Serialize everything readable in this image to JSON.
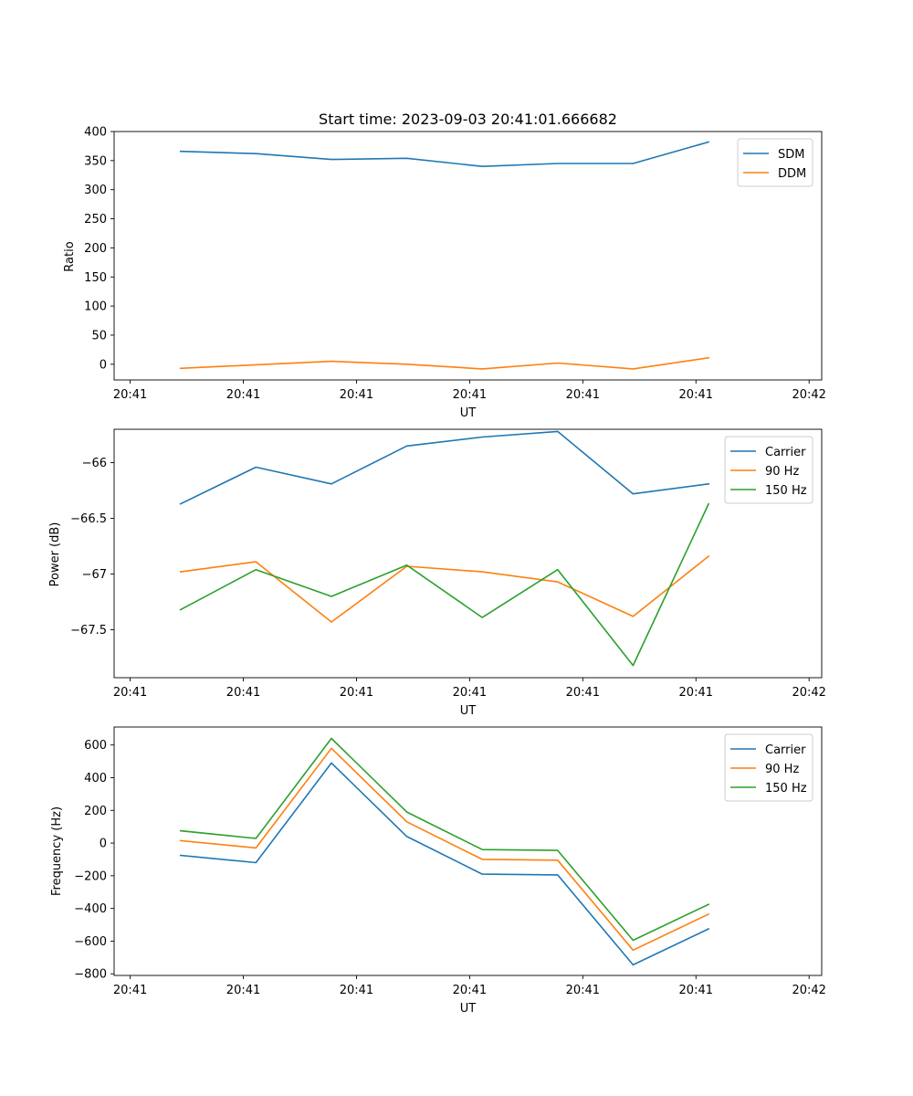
{
  "chart_data": [
    {
      "type": "line",
      "title": "Start time: 2023-09-03 20:41:01.666682",
      "xlabel": "UT",
      "ylabel": "Ratio",
      "xlim": [
        0.12,
        9.5
      ],
      "ylim": [
        -27,
        400
      ],
      "yticks": [
        0,
        50,
        100,
        150,
        200,
        250,
        300,
        350,
        400
      ],
      "xticks": [
        {
          "pos": 0.333,
          "label": "20:41"
        },
        {
          "pos": 1.833,
          "label": "20:41"
        },
        {
          "pos": 3.333,
          "label": "20:41"
        },
        {
          "pos": 4.833,
          "label": "20:41"
        },
        {
          "pos": 6.333,
          "label": "20:41"
        },
        {
          "pos": 7.833,
          "label": "20:41"
        },
        {
          "pos": 9.333,
          "label": "20:42"
        }
      ],
      "x": [
        1.0,
        2.0,
        3.0,
        4.0,
        5.0,
        6.0,
        7.0,
        8.0
      ],
      "legend_position": "top-right",
      "series": [
        {
          "name": "SDM",
          "color": "#1f77b4",
          "values": [
            366,
            362,
            352,
            354,
            340,
            345,
            345,
            382
          ]
        },
        {
          "name": "DDM",
          "color": "#ff7f0e",
          "values": [
            -7,
            -1,
            5,
            0,
            -8,
            2,
            -8,
            11
          ]
        }
      ]
    },
    {
      "type": "line",
      "title": "",
      "xlabel": "UT",
      "ylabel": "Power (dB)",
      "xlim": [
        0.12,
        9.5
      ],
      "ylim": [
        -67.93,
        -65.7
      ],
      "yticks": [
        -67.5,
        -67.0,
        -66.5,
        -66.0
      ],
      "xticks": [
        {
          "pos": 0.333,
          "label": "20:41"
        },
        {
          "pos": 1.833,
          "label": "20:41"
        },
        {
          "pos": 3.333,
          "label": "20:41"
        },
        {
          "pos": 4.833,
          "label": "20:41"
        },
        {
          "pos": 6.333,
          "label": "20:41"
        },
        {
          "pos": 7.833,
          "label": "20:41"
        },
        {
          "pos": 9.333,
          "label": "20:42"
        }
      ],
      "x": [
        1.0,
        2.0,
        3.0,
        4.0,
        5.0,
        6.0,
        7.0,
        8.0
      ],
      "legend_position": "top-right",
      "series": [
        {
          "name": "Carrier",
          "color": "#1f77b4",
          "values": [
            -66.37,
            -66.04,
            -66.19,
            -65.85,
            -65.77,
            -65.72,
            -66.28,
            -66.19
          ]
        },
        {
          "name": "90 Hz",
          "color": "#ff7f0e",
          "values": [
            -66.98,
            -66.89,
            -67.43,
            -66.93,
            -66.98,
            -67.07,
            -67.38,
            -66.84
          ]
        },
        {
          "name": "150 Hz",
          "color": "#2ca02c",
          "values": [
            -67.32,
            -66.96,
            -67.2,
            -66.92,
            -67.39,
            -66.96,
            -67.82,
            -66.37
          ]
        }
      ]
    },
    {
      "type": "line",
      "title": "",
      "xlabel": "UT",
      "ylabel": "Frequency (Hz)",
      "xlim": [
        0.12,
        9.5
      ],
      "ylim": [
        -810,
        710
      ],
      "yticks": [
        -800,
        -600,
        -400,
        -200,
        0,
        200,
        400,
        600
      ],
      "xticks": [
        {
          "pos": 0.333,
          "label": "20:41"
        },
        {
          "pos": 1.833,
          "label": "20:41"
        },
        {
          "pos": 3.333,
          "label": "20:41"
        },
        {
          "pos": 4.833,
          "label": "20:41"
        },
        {
          "pos": 6.333,
          "label": "20:41"
        },
        {
          "pos": 7.833,
          "label": "20:41"
        },
        {
          "pos": 9.333,
          "label": "20:42"
        }
      ],
      "x": [
        1.0,
        2.0,
        3.0,
        4.0,
        5.0,
        6.0,
        7.0,
        8.0
      ],
      "legend_position": "top-right",
      "series": [
        {
          "name": "Carrier",
          "color": "#1f77b4",
          "values": [
            -75,
            -120,
            490,
            40,
            -190,
            -195,
            -745,
            -525
          ]
        },
        {
          "name": "90 Hz",
          "color": "#ff7f0e",
          "values": [
            15,
            -30,
            580,
            130,
            -100,
            -105,
            -655,
            -435
          ]
        },
        {
          "name": "150 Hz",
          "color": "#2ca02c",
          "values": [
            75,
            28,
            640,
            190,
            -40,
            -45,
            -595,
            -375
          ]
        }
      ]
    }
  ]
}
